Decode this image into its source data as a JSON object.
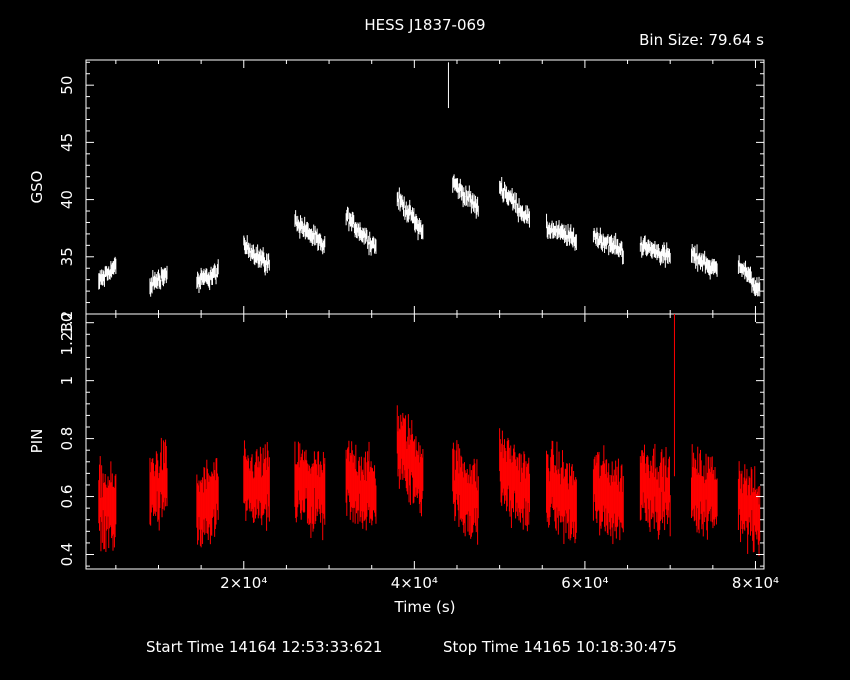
{
  "title": "HESS J1837-069",
  "bin_size": "Bin Size: 79.64 s",
  "xlabel": "Time (s)",
  "start_time": "Start Time 14164 12:53:33:621",
  "stop_time": "Stop Time 14165 10:18:30:475",
  "colors": {
    "background": "#000000",
    "gso": "#ffffff",
    "pin": "#ff0000",
    "axes": "#ffffff"
  },
  "chart_data": [
    {
      "type": "scatter",
      "panel": "top",
      "ylabel": "GSO",
      "xlim": [
        1500,
        81000
      ],
      "ylim": [
        30,
        52.2
      ],
      "yticks": [
        35,
        40,
        45,
        50
      ],
      "ytick_labels": [
        "35",
        "40",
        "45",
        "50"
      ],
      "note": "error-bar light curve; each segment estimated from visual trend",
      "segments": [
        {
          "x": [
            3000,
            5000
          ],
          "y": [
            32.8,
            34.2
          ]
        },
        {
          "x": [
            9000,
            11000
          ],
          "y": [
            32.5,
            33.6
          ]
        },
        {
          "x": [
            14500,
            17000
          ],
          "y": [
            32.8,
            33.6
          ]
        },
        {
          "x": [
            20000,
            23000
          ],
          "y": [
            36.0,
            34.3
          ]
        },
        {
          "x": [
            26000,
            29500
          ],
          "y": [
            38.2,
            35.8
          ]
        },
        {
          "x": [
            32000,
            35500
          ],
          "y": [
            38.5,
            35.8
          ]
        },
        {
          "x": [
            38000,
            41000
          ],
          "y": [
            40.2,
            37.2
          ]
        },
        {
          "x": [
            44500,
            47500
          ],
          "y": [
            41.5,
            39.2
          ]
        },
        {
          "x": [
            50000,
            53500
          ],
          "y": [
            41.2,
            38.2
          ]
        },
        {
          "x": [
            55500,
            59000
          ],
          "y": [
            37.5,
            36.5
          ]
        },
        {
          "x": [
            61000,
            64500
          ],
          "y": [
            36.8,
            35.5
          ]
        },
        {
          "x": [
            66500,
            70000
          ],
          "y": [
            36.0,
            35.0
          ]
        },
        {
          "x": [
            72500,
            75500
          ],
          "y": [
            35.2,
            33.8
          ]
        },
        {
          "x": [
            78000,
            80500
          ],
          "y": [
            34.5,
            32.0
          ]
        }
      ],
      "spike": {
        "x": 44000,
        "y": 50,
        "err": 2
      }
    },
    {
      "type": "scatter",
      "panel": "bottom",
      "ylabel": "PIN",
      "xlim": [
        1500,
        81000
      ],
      "ylim": [
        0.35,
        1.23
      ],
      "top_tick_label": "1.230",
      "yticks": [
        0.4,
        0.6,
        0.8,
        1.0,
        1.2
      ],
      "ytick_labels": [
        "0.4",
        "0.6",
        "0.8",
        "1",
        "1.2"
      ],
      "xticks": [
        20000,
        40000,
        60000,
        80000
      ],
      "xtick_labels": [
        "2×10⁴",
        "4×10⁴",
        "6×10⁴",
        "8×10⁴"
      ],
      "note": "error-bar light curve; each segment estimated from visual trend",
      "segments": [
        {
          "x": [
            3000,
            5000
          ],
          "y": [
            0.58,
            0.55
          ]
        },
        {
          "x": [
            9000,
            11000
          ],
          "y": [
            0.62,
            0.65
          ]
        },
        {
          "x": [
            14500,
            17000
          ],
          "y": [
            0.55,
            0.6
          ]
        },
        {
          "x": [
            20000,
            23000
          ],
          "y": [
            0.62,
            0.63
          ]
        },
        {
          "x": [
            26000,
            29500
          ],
          "y": [
            0.65,
            0.6
          ]
        },
        {
          "x": [
            32000,
            35500
          ],
          "y": [
            0.66,
            0.6
          ]
        },
        {
          "x": [
            38000,
            41000
          ],
          "y": [
            0.78,
            0.67
          ]
        },
        {
          "x": [
            44500,
            47500
          ],
          "y": [
            0.65,
            0.58
          ]
        },
        {
          "x": [
            50000,
            53500
          ],
          "y": [
            0.7,
            0.6
          ]
        },
        {
          "x": [
            55500,
            59000
          ],
          "y": [
            0.65,
            0.57
          ]
        },
        {
          "x": [
            61000,
            64500
          ],
          "y": [
            0.63,
            0.58
          ]
        },
        {
          "x": [
            66500,
            70000
          ],
          "y": [
            0.66,
            0.6
          ]
        },
        {
          "x": [
            72500,
            75500
          ],
          "y": [
            0.62,
            0.6
          ]
        },
        {
          "x": [
            78000,
            80500
          ],
          "y": [
            0.6,
            0.52
          ]
        }
      ],
      "spike": {
        "x": 70500,
        "y": 0.95,
        "err": 0.28
      }
    }
  ]
}
